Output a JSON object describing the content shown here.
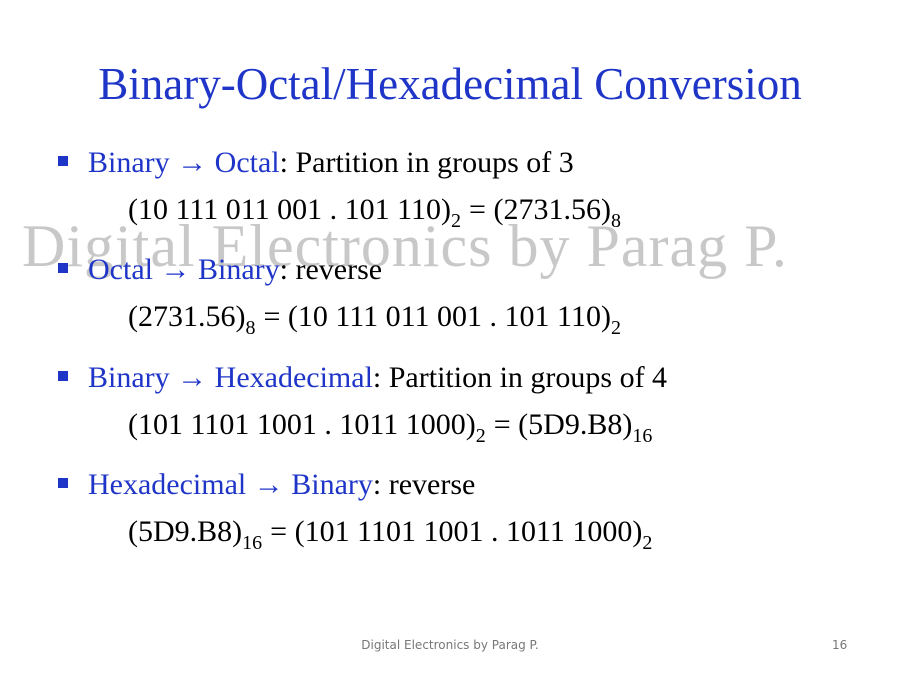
{
  "title": "Binary-Octal/Hexadecimal Conversion",
  "watermark": "Digital Electronics by Parag P.",
  "items": [
    {
      "from": "Binary",
      "arrow": "→",
      "to": "Octal",
      "rest": ": Partition in groups of 3",
      "example": [
        {
          "text": "(10 111 011 001 . 101 110)",
          "sub": "2"
        },
        {
          "text": "= (2731.56)",
          "sub": "8"
        }
      ]
    },
    {
      "from": "Octal",
      "arrow": "→",
      "to": "Binary",
      "rest": ": reverse",
      "example": [
        {
          "text": "(2731.56)",
          "sub": "8"
        },
        {
          "text": "= (10 111 011 001 . 101 110)",
          "sub": "2"
        }
      ]
    },
    {
      "from": "Binary",
      "arrow": "→",
      "to": "Hexadecimal",
      "rest": ": Partition in groups of 4",
      "example": [
        {
          "text": "(101 1101 1001 . 1011 1000)",
          "sub": "2"
        },
        {
          "text": "= (5D9.B8)",
          "sub": "16"
        }
      ]
    },
    {
      "from": "Hexadecimal",
      "arrow": "→",
      "to": "Binary",
      "rest": ": reverse",
      "example": [
        {
          "text": "(5D9.B8)",
          "sub": "16"
        },
        {
          "text": "= (101 1101 1001 . 1011 1000)",
          "sub": "2"
        }
      ]
    }
  ],
  "footer": {
    "text": "Digital Electronics by Parag P.",
    "page": "16"
  }
}
